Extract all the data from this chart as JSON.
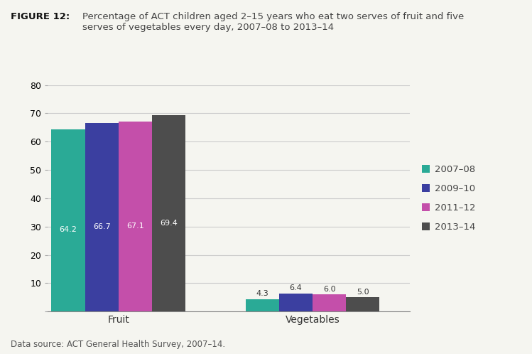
{
  "title_bold": "FIGURE 12:",
  "title_text": "Percentage of ACT children aged 2–15 years who eat two serves of fruit and five\nserves of vegetables every day, 2007–08 to 2013–14",
  "categories": [
    "Fruit",
    "Vegetables"
  ],
  "series": [
    {
      "label": "2007–08",
      "color": "#2aaa96",
      "values": [
        64.2,
        4.3
      ]
    },
    {
      "label": "2009–10",
      "color": "#3b3fa0",
      "values": [
        66.7,
        6.4
      ]
    },
    {
      "label": "2011–12",
      "color": "#c44faa",
      "values": [
        67.1,
        6.0
      ]
    },
    {
      "label": "2013–14",
      "color": "#4d4d4d",
      "values": [
        69.4,
        5.0
      ]
    }
  ],
  "ylim": [
    0,
    80
  ],
  "yticks": [
    0,
    10,
    20,
    30,
    40,
    50,
    60,
    70,
    80
  ],
  "bar_width": 0.19,
  "data_source": "Data source: ACT General Health Survey, 2007–14.",
  "background_color": "#f5f5f0",
  "grid_color": "#cccccc"
}
